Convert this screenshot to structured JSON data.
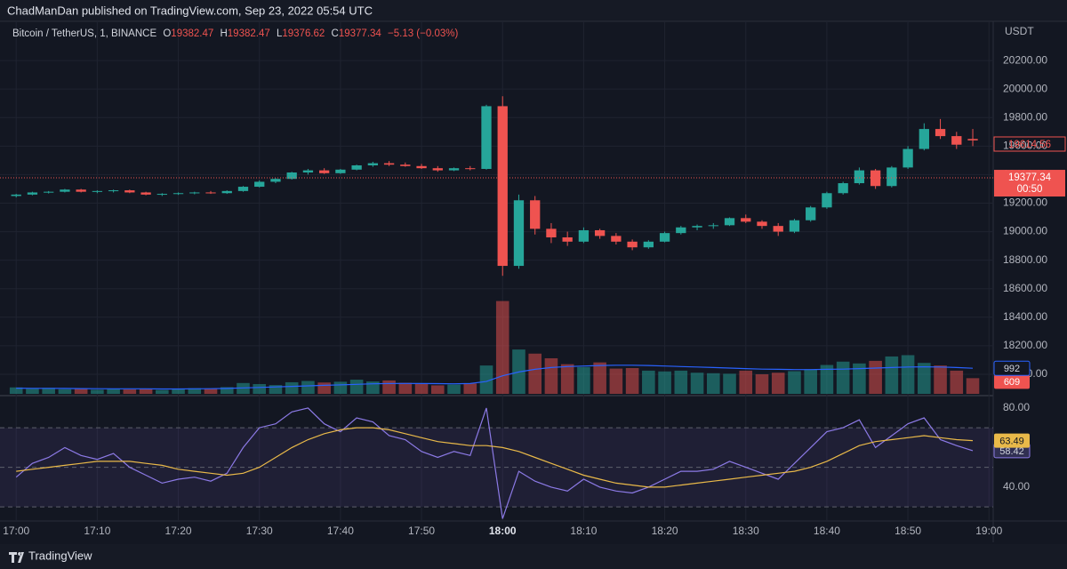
{
  "header": "ChadManDan published on TradingView.com, Sep 23, 2022 05:54 UTC",
  "footer": "TradingView",
  "chart_data": [
    {
      "type": "candlestick",
      "legend": {
        "symbol": "Bitcoin / TetherUS, 1, BINANCE",
        "open": {
          "prefix": "O",
          "value": 19382.47
        },
        "high": {
          "prefix": "H",
          "value": 19382.47
        },
        "low": {
          "prefix": "L",
          "value": 19376.62
        },
        "close": {
          "prefix": "C",
          "value": 19377.34
        },
        "change": "−5.13 (−0.03%)"
      },
      "currency": "USDT",
      "countdown": "00:50",
      "price_line": 19614.56,
      "up_color": "#26a69a",
      "down_color": "#ef5350",
      "grid": true,
      "xlim": [
        -0.9,
        120.3
      ],
      "ylim": [
        17862.5,
        20475
      ],
      "xticks": [
        {
          "value": 0,
          "label": "17:00"
        },
        {
          "value": 10,
          "label": "17:10"
        },
        {
          "value": 20,
          "label": "17:20"
        },
        {
          "value": 30,
          "label": "17:30"
        },
        {
          "value": 40,
          "label": "17:40"
        },
        {
          "value": 50,
          "label": "17:50"
        },
        {
          "value": 60,
          "label": "18:00"
        },
        {
          "value": 70,
          "label": "18:10"
        },
        {
          "value": 80,
          "label": "18:20"
        },
        {
          "value": 90,
          "label": "18:30"
        },
        {
          "value": 100,
          "label": "18:40"
        },
        {
          "value": 110,
          "label": "18:50"
        },
        {
          "value": 120,
          "label": "19:00"
        }
      ],
      "yticks": [
        {
          "value": 18000,
          "label": "18000.00"
        },
        {
          "value": 18200,
          "label": "18200.00"
        },
        {
          "value": 18400,
          "label": "18400.00"
        },
        {
          "value": 18600,
          "label": "18600.00"
        },
        {
          "value": 18800,
          "label": "18800.00"
        },
        {
          "value": 19000,
          "label": "19000.00"
        },
        {
          "value": 19200,
          "label": "19200.00"
        },
        {
          "value": 19400,
          "label": "19400.00"
        },
        {
          "value": 19600,
          "label": "19600.00"
        },
        {
          "value": 19800,
          "label": "19800.00"
        },
        {
          "value": 20000,
          "label": "20000.00"
        },
        {
          "value": 20200,
          "label": "20200.00"
        }
      ],
      "x": [
        0,
        2,
        4,
        6,
        8,
        10,
        12,
        14,
        16,
        18,
        20,
        22,
        24,
        26,
        28,
        30,
        32,
        34,
        36,
        38,
        40,
        42,
        44,
        46,
        48,
        50,
        52,
        54,
        56,
        58,
        60,
        62,
        64,
        66,
        68,
        70,
        72,
        74,
        76,
        78,
        80,
        82,
        84,
        86,
        88,
        90,
        92,
        94,
        96,
        98,
        100,
        102,
        104,
        106,
        108,
        110,
        112,
        114,
        116,
        118
      ],
      "open": [
        19250,
        19260,
        19275,
        19280,
        19295,
        19280,
        19285,
        19290,
        19275,
        19260,
        19265,
        19270,
        19275,
        19270,
        19285,
        19315,
        19350,
        19370,
        19415,
        19430,
        19410,
        19435,
        19465,
        19480,
        19470,
        19460,
        19445,
        19430,
        19445,
        19440,
        19880,
        18760,
        19220,
        19020,
        18960,
        18930,
        19010,
        18970,
        18930,
        18890,
        18930,
        18990,
        19030,
        19040,
        19045,
        19095,
        19070,
        19040,
        19000,
        19080,
        19170,
        19270,
        19340,
        19430,
        19320,
        19450,
        19580,
        19720,
        19670,
        19650
      ],
      "high": [
        19265,
        19280,
        19285,
        19300,
        19300,
        19290,
        19295,
        19295,
        19280,
        19270,
        19275,
        19280,
        19285,
        19290,
        19320,
        19360,
        19375,
        19420,
        19440,
        19445,
        19440,
        19470,
        19490,
        19495,
        19485,
        19475,
        19460,
        19450,
        19460,
        19890,
        19950,
        19260,
        19250,
        19060,
        19000,
        19030,
        19020,
        18990,
        18945,
        18940,
        19000,
        19040,
        19050,
        19060,
        19100,
        19120,
        19080,
        19060,
        19090,
        19180,
        19280,
        19350,
        19450,
        19440,
        19460,
        19600,
        19760,
        19790,
        19700,
        19720
      ],
      "low": [
        19240,
        19255,
        19268,
        19275,
        19275,
        19270,
        19275,
        19270,
        19255,
        19250,
        19258,
        19262,
        19265,
        19265,
        19280,
        19310,
        19340,
        19365,
        19400,
        19405,
        19405,
        19430,
        19455,
        19460,
        19455,
        19440,
        19420,
        19425,
        19430,
        19435,
        18690,
        18740,
        18980,
        18920,
        18900,
        18920,
        18950,
        18910,
        18870,
        18880,
        18925,
        18980,
        19010,
        19020,
        19040,
        19060,
        19020,
        18970,
        18990,
        19070,
        19160,
        19260,
        19330,
        19300,
        19310,
        19440,
        19570,
        19650,
        19580,
        19600
      ],
      "close": [
        19260,
        19275,
        19280,
        19295,
        19280,
        19285,
        19290,
        19275,
        19260,
        19265,
        19270,
        19275,
        19270,
        19285,
        19315,
        19350,
        19370,
        19415,
        19430,
        19410,
        19435,
        19465,
        19480,
        19470,
        19460,
        19445,
        19430,
        19445,
        19440,
        19880,
        18760,
        19220,
        19020,
        18960,
        18930,
        19010,
        18970,
        18930,
        18890,
        18930,
        18990,
        19030,
        19040,
        19045,
        19095,
        19070,
        19040,
        19000,
        19080,
        19170,
        19270,
        19340,
        19430,
        19320,
        19450,
        19580,
        19720,
        19670,
        19610,
        19640
      ]
    },
    {
      "type": "bar",
      "xlim": [
        -0.9,
        120.3
      ],
      "ylim": [
        0,
        4000
      ],
      "x": [
        0,
        2,
        4,
        6,
        8,
        10,
        12,
        14,
        16,
        18,
        20,
        22,
        24,
        26,
        28,
        30,
        32,
        34,
        36,
        38,
        40,
        42,
        44,
        46,
        48,
        50,
        52,
        54,
        56,
        58,
        60,
        62,
        64,
        66,
        68,
        70,
        72,
        74,
        76,
        78,
        80,
        82,
        84,
        86,
        88,
        90,
        92,
        94,
        96,
        98,
        100,
        102,
        104,
        106,
        108,
        110,
        112,
        114,
        116,
        118
      ],
      "series": [
        {
          "up_color": "rgba(38,166,154,0.5)",
          "down_color": "rgba(239,83,80,0.5)",
          "tag_up": "#26a69a",
          "tag_down": "#ef5350",
          "values": [
            250,
            200,
            230,
            180,
            210,
            160,
            190,
            170,
            200,
            150,
            180,
            220,
            200,
            260,
            420,
            380,
            340,
            450,
            500,
            440,
            470,
            550,
            480,
            520,
            430,
            380,
            330,
            360,
            400,
            1100,
            3600,
            1720,
            1560,
            1380,
            1150,
            1040,
            1220,
            980,
            1000,
            900,
            870,
            900,
            820,
            800,
            780,
            900,
            760,
            820,
            880,
            950,
            1120,
            1250,
            1180,
            1280,
            1450,
            1500,
            1200,
            1100,
            900,
            609
          ]
        },
        {
          "type": "line",
          "color": "#2962ff",
          "values": [
            220,
            215,
            215,
            210,
            205,
            200,
            195,
            195,
            195,
            190,
            190,
            195,
            200,
            210,
            230,
            250,
            270,
            290,
            310,
            330,
            350,
            370,
            390,
            400,
            405,
            400,
            395,
            390,
            400,
            480,
            700,
            850,
            950,
            1020,
            1060,
            1080,
            1100,
            1110,
            1110,
            1100,
            1080,
            1060,
            1040,
            1020,
            1000,
            980,
            960,
            950,
            940,
            940,
            950,
            960,
            980,
            1000,
            1020,
            1040,
            1050,
            1040,
            1020,
            992
          ]
        }
      ]
    },
    {
      "type": "line",
      "xlim": [
        -0.9,
        120.3
      ],
      "ylim": [
        23.3,
        84.9
      ],
      "yticks": [
        {
          "value": 40,
          "label": "40.00"
        },
        {
          "value": 80,
          "label": "80.00"
        }
      ],
      "levels": [
        70,
        50,
        30
      ],
      "band_color": "rgba(126,87,194,0.12)",
      "x": [
        0,
        2,
        4,
        6,
        8,
        10,
        12,
        14,
        16,
        18,
        20,
        22,
        24,
        26,
        28,
        30,
        32,
        34,
        36,
        38,
        40,
        42,
        44,
        46,
        48,
        50,
        52,
        54,
        56,
        58,
        60,
        62,
        64,
        66,
        68,
        70,
        72,
        74,
        76,
        78,
        80,
        82,
        84,
        86,
        88,
        90,
        92,
        94,
        96,
        98,
        100,
        102,
        104,
        106,
        108,
        110,
        112,
        114,
        116,
        118
      ],
      "series": [
        {
          "color": "#8c7ae6",
          "values": [
            45,
            52,
            55,
            60,
            56,
            54,
            57,
            50,
            46,
            42,
            44,
            45,
            43,
            47,
            60,
            70,
            72,
            78,
            80,
            72,
            68,
            75,
            73,
            66,
            64,
            58,
            55,
            58,
            56,
            80,
            24,
            48,
            43,
            40,
            38,
            44,
            40,
            38,
            37,
            40,
            44,
            48,
            48,
            49,
            53,
            50,
            47,
            44,
            52,
            60,
            68,
            70,
            74,
            60,
            66,
            72,
            75,
            64,
            61,
            58.42
          ]
        },
        {
          "color": "#e9b949",
          "values": [
            48,
            49,
            50,
            51,
            52,
            53,
            53,
            53,
            52,
            51,
            49,
            48,
            47,
            46,
            47,
            50,
            55,
            60,
            64,
            67,
            69,
            70,
            70,
            69,
            67,
            65,
            63,
            62,
            61,
            61,
            60,
            58,
            55,
            52,
            49,
            46,
            44,
            42,
            41,
            40,
            40,
            41,
            42,
            43,
            44,
            45,
            46,
            47,
            48,
            50,
            53,
            57,
            61,
            63,
            64,
            65,
            66,
            65,
            64,
            63.49
          ]
        }
      ]
    }
  ]
}
